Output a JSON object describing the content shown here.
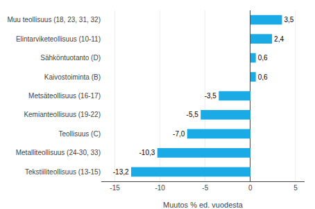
{
  "chart_data": {
    "type": "bar",
    "orientation": "horizontal",
    "categories": [
      "Tekstiiliteollisuus (13-15)",
      "Metalliteollisuus (24-30, 33)",
      "Teollisuus (C)",
      "Kemianteollisuus (19-22)",
      "Metsäteollisuus (16-17)",
      "Kaivostoiminta (B)",
      "Sähköntuotanto (D)",
      "Elintarviketeollisuus (10-11)",
      "Muu teollisuus (18, 23, 31, 32)"
    ],
    "values": [
      -13.2,
      -10.3,
      -7.0,
      -5.5,
      -3.5,
      0.6,
      0.6,
      2.4,
      3.5
    ],
    "value_labels": [
      "-13,2",
      "-10,3",
      "-7,0",
      "-5,5",
      "-3,5",
      "0,6",
      "0,6",
      "2,4",
      "3,5"
    ],
    "data_labels": true,
    "color": "#1aabe6",
    "xlabel": "Muutos % ed. vuodesta",
    "xlim": [
      -16.5,
      6.0
    ],
    "xticks": [
      -15,
      -10,
      -5,
      0,
      5
    ],
    "grid": true
  }
}
